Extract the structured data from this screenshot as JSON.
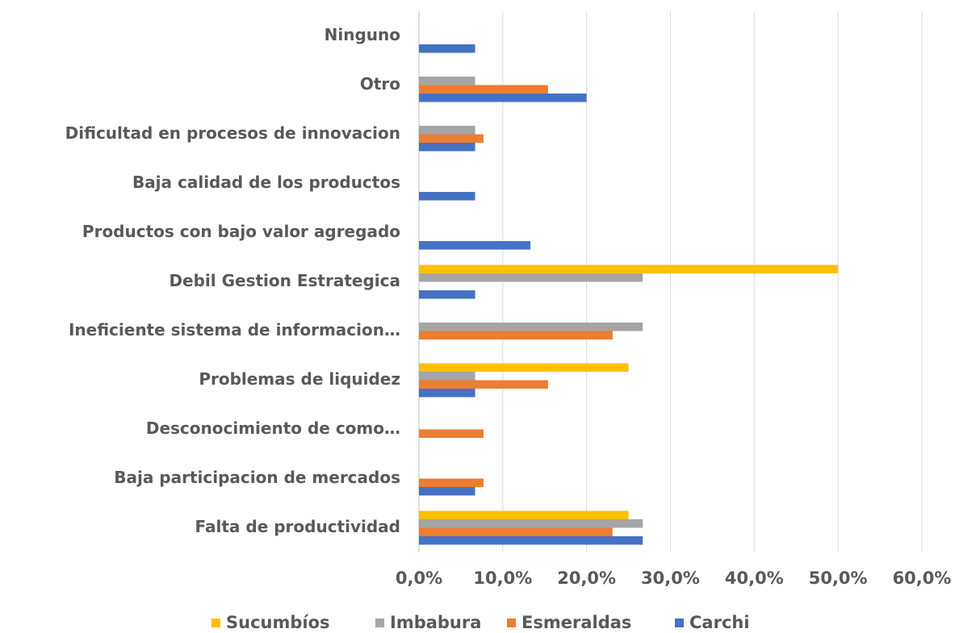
{
  "chart_data": {
    "type": "bar",
    "orientation": "horizontal",
    "categories": [
      "Ninguno",
      "Otro",
      "Dificultad en procesos de innovacion",
      "Baja calidad de los productos",
      "Productos con bajo valor agregado",
      "Debil Gestion Estrategica",
      "Ineficiente sistema de informacion…",
      "Problemas de liquidez",
      "Desconocimiento de como…",
      "Baja participacion de mercados",
      "Falta de productividad"
    ],
    "series": [
      {
        "name": "Sucumbíos",
        "color": "#FFC000",
        "values": [
          0,
          0,
          0,
          0,
          0,
          50,
          0,
          25,
          0,
          0,
          25
        ]
      },
      {
        "name": "Imbabura",
        "color": "#A5A5A5",
        "values": [
          0,
          6.7,
          6.7,
          0,
          0,
          26.7,
          26.7,
          6.7,
          0,
          0,
          26.7
        ]
      },
      {
        "name": "Esmeraldas",
        "color": "#ED7D31",
        "values": [
          0,
          15.4,
          7.7,
          0,
          0,
          0,
          23.1,
          15.4,
          7.7,
          7.7,
          23.1
        ]
      },
      {
        "name": "Carchi",
        "color": "#4472C4",
        "values": [
          6.7,
          20,
          6.7,
          6.7,
          13.3,
          6.7,
          0,
          6.7,
          0,
          6.7,
          26.7
        ]
      }
    ],
    "xlim": [
      0,
      60
    ],
    "xticks": [
      {
        "value": 0,
        "label": "0,0%"
      },
      {
        "value": 10,
        "label": "10,0%"
      },
      {
        "value": 20,
        "label": "20,0%"
      },
      {
        "value": 30,
        "label": "30,0%"
      },
      {
        "value": 40,
        "label": "40,0%"
      },
      {
        "value": 50,
        "label": "50,0%"
      },
      {
        "value": 60,
        "label": "60,0%"
      }
    ],
    "grid": true,
    "legend": "bottom"
  }
}
